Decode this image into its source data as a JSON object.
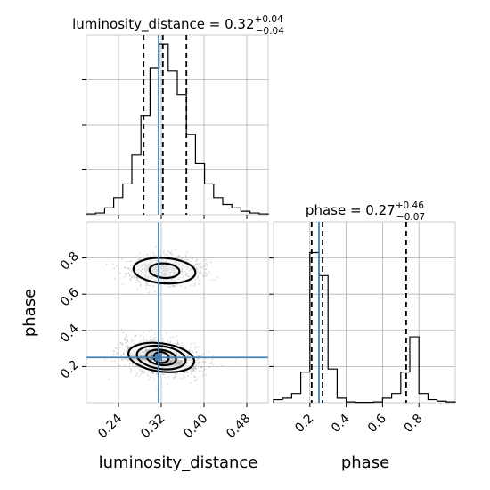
{
  "chart_data": {
    "type": "corner",
    "truth_color": "#4682b4",
    "parameters": [
      {
        "name": "luminosity_distance",
        "title_prefix": "luminosity_distance = 0.32",
        "title_plus": "+0.04",
        "title_minus": "−0.04",
        "range": [
          0.18,
          0.52
        ],
        "ticks": [
          0.24,
          0.32,
          0.4,
          0.48
        ],
        "tick_labels": [
          "0.24",
          "0.32",
          "0.40",
          "0.48"
        ],
        "quantiles": [
          0.287,
          0.323,
          0.367
        ],
        "truth": 0.315,
        "hist": {
          "edges": [
            0.18,
            0.197,
            0.214,
            0.231,
            0.248,
            0.265,
            0.282,
            0.299,
            0.316,
            0.333,
            0.35,
            0.367,
            0.384,
            0.401,
            0.418,
            0.435,
            0.452,
            0.469,
            0.486,
            0.503,
            0.52
          ],
          "counts": [
            0.005,
            0.01,
            0.04,
            0.1,
            0.18,
            0.35,
            0.58,
            0.86,
            1.0,
            0.84,
            0.7,
            0.47,
            0.3,
            0.18,
            0.1,
            0.06,
            0.04,
            0.02,
            0.01,
            0.005
          ]
        }
      },
      {
        "name": "phase",
        "title_prefix": "phase = 0.27",
        "title_plus": "+0.46",
        "title_minus": "−0.07",
        "range": [
          0.0,
          1.0
        ],
        "ticks": [
          0.2,
          0.4,
          0.6,
          0.8
        ],
        "tick_labels": [
          "0.2",
          "0.4",
          "0.6",
          "0.8"
        ],
        "quantiles": [
          0.21,
          0.27,
          0.73
        ],
        "truth": 0.25,
        "hist": {
          "edges": [
            0.0,
            0.05,
            0.1,
            0.15,
            0.2,
            0.25,
            0.3,
            0.35,
            0.4,
            0.45,
            0.5,
            0.55,
            0.6,
            0.65,
            0.7,
            0.75,
            0.8,
            0.85,
            0.9,
            0.95,
            1.0
          ],
          "counts": [
            0.02,
            0.03,
            0.06,
            0.2,
            0.98,
            0.83,
            0.22,
            0.03,
            0.005,
            0.002,
            0.002,
            0.005,
            0.03,
            0.06,
            0.2,
            0.43,
            0.06,
            0.02,
            0.01,
            0.005
          ]
        }
      }
    ],
    "joint": {
      "x": "luminosity_distance",
      "y": "phase",
      "modes": [
        {
          "center": [
            0.32,
            0.25
          ],
          "contours": [
            {
              "rx": 0.014,
              "ry": 0.03
            },
            {
              "rx": 0.028,
              "ry": 0.042
            },
            {
              "rx": 0.046,
              "ry": 0.063
            },
            {
              "rx": 0.062,
              "ry": 0.078
            }
          ]
        },
        {
          "center": [
            0.326,
            0.73
          ],
          "contours": [
            {
              "rx": 0.028,
              "ry": 0.04
            },
            {
              "rx": 0.058,
              "ry": 0.07
            }
          ]
        }
      ],
      "density_cells": [
        {
          "x": 0.31,
          "y": 0.25,
          "level": 1.0
        },
        {
          "x": 0.29,
          "y": 0.25,
          "level": 0.6
        },
        {
          "x": 0.33,
          "y": 0.22,
          "level": 0.7
        },
        {
          "x": 0.35,
          "y": 0.22,
          "level": 0.55
        },
        {
          "x": 0.3,
          "y": 0.28,
          "level": 0.5
        },
        {
          "x": 0.32,
          "y": 0.28,
          "level": 0.45
        },
        {
          "x": 0.27,
          "y": 0.25,
          "level": 0.3
        },
        {
          "x": 0.34,
          "y": 0.25,
          "level": 0.4
        },
        {
          "x": 0.3,
          "y": 0.75,
          "level": 0.2
        },
        {
          "x": 0.32,
          "y": 0.75,
          "level": 0.2
        },
        {
          "x": 0.34,
          "y": 0.75,
          "level": 0.15
        }
      ]
    }
  }
}
